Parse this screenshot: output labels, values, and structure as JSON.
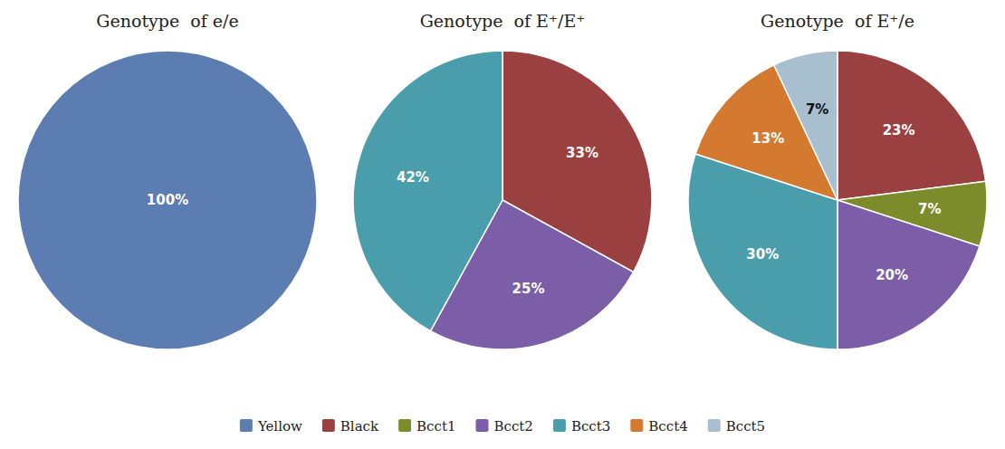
{
  "chart_data": [
    {
      "type": "pie",
      "title": "Genotype  of e/e",
      "categories": [
        "Yellow"
      ],
      "values": [
        100
      ],
      "value_labels": [
        "100%"
      ],
      "colors": [
        "#5b7db1"
      ],
      "data_labels": true,
      "legend": "bottom"
    },
    {
      "type": "pie",
      "title": "Genotype  of E⁺/E⁺",
      "categories": [
        "Black",
        "Bcct2",
        "Bcct3"
      ],
      "values": [
        33,
        25,
        42
      ],
      "value_labels": [
        "33%",
        "25%",
        "42%"
      ],
      "colors": [
        "#9b4040",
        "#7b5ea7",
        "#4a9daa"
      ],
      "data_labels": true,
      "legend": "bottom"
    },
    {
      "type": "pie",
      "title": "Genotype  of E⁺/e",
      "categories": [
        "Black",
        "Bcct1",
        "Bcct2",
        "Bcct3",
        "Bcct4",
        "Bcct5"
      ],
      "values": [
        23,
        7,
        20,
        30,
        13,
        7
      ],
      "value_labels": [
        "23%",
        "7%",
        "20%",
        "30%",
        "13%",
        "7%"
      ],
      "colors": [
        "#9b4040",
        "#7d8c2a",
        "#7b5ea7",
        "#4a9daa",
        "#d47a30",
        "#a8bfd0"
      ],
      "data_labels": true,
      "legend": "bottom"
    }
  ]
}
